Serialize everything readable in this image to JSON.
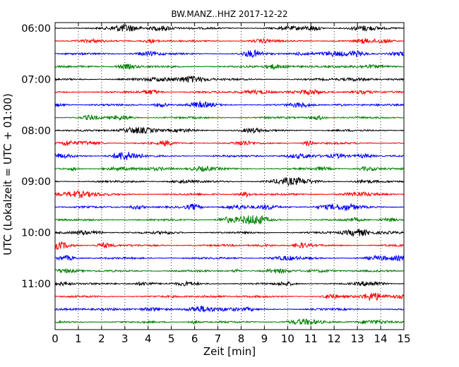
{
  "chart_data": {
    "type": "line",
    "title": "BW.MANZ..HHZ 2017-12-22",
    "xlabel": "Zeit  [min]",
    "ylabel": "UTC (Lokalzeit = UTC + 01:00)",
    "xlim": [
      0,
      15
    ],
    "x_ticks": [
      "0",
      "1",
      "2",
      "3",
      "4",
      "5",
      "6",
      "7",
      "8",
      "9",
      "10",
      "11",
      "12",
      "13",
      "14",
      "15"
    ],
    "y_ticks": [
      "06:00",
      "07:00",
      "08:00",
      "09:00",
      "10:00",
      "11:00"
    ],
    "grid": "vertical dotted at each minute",
    "trace_colors": [
      "#000000",
      "#ff0000",
      "#0000ff",
      "#008000"
    ],
    "trace_start_times": [
      "06:00",
      "06:15",
      "06:30",
      "06:45",
      "07:00",
      "07:15",
      "07:30",
      "07:45",
      "08:00",
      "08:15",
      "08:30",
      "08:45",
      "09:00",
      "09:15",
      "09:30",
      "09:45",
      "10:00",
      "10:15",
      "10:30",
      "10:45",
      "11:00",
      "11:15",
      "11:30",
      "11:45"
    ]
  }
}
